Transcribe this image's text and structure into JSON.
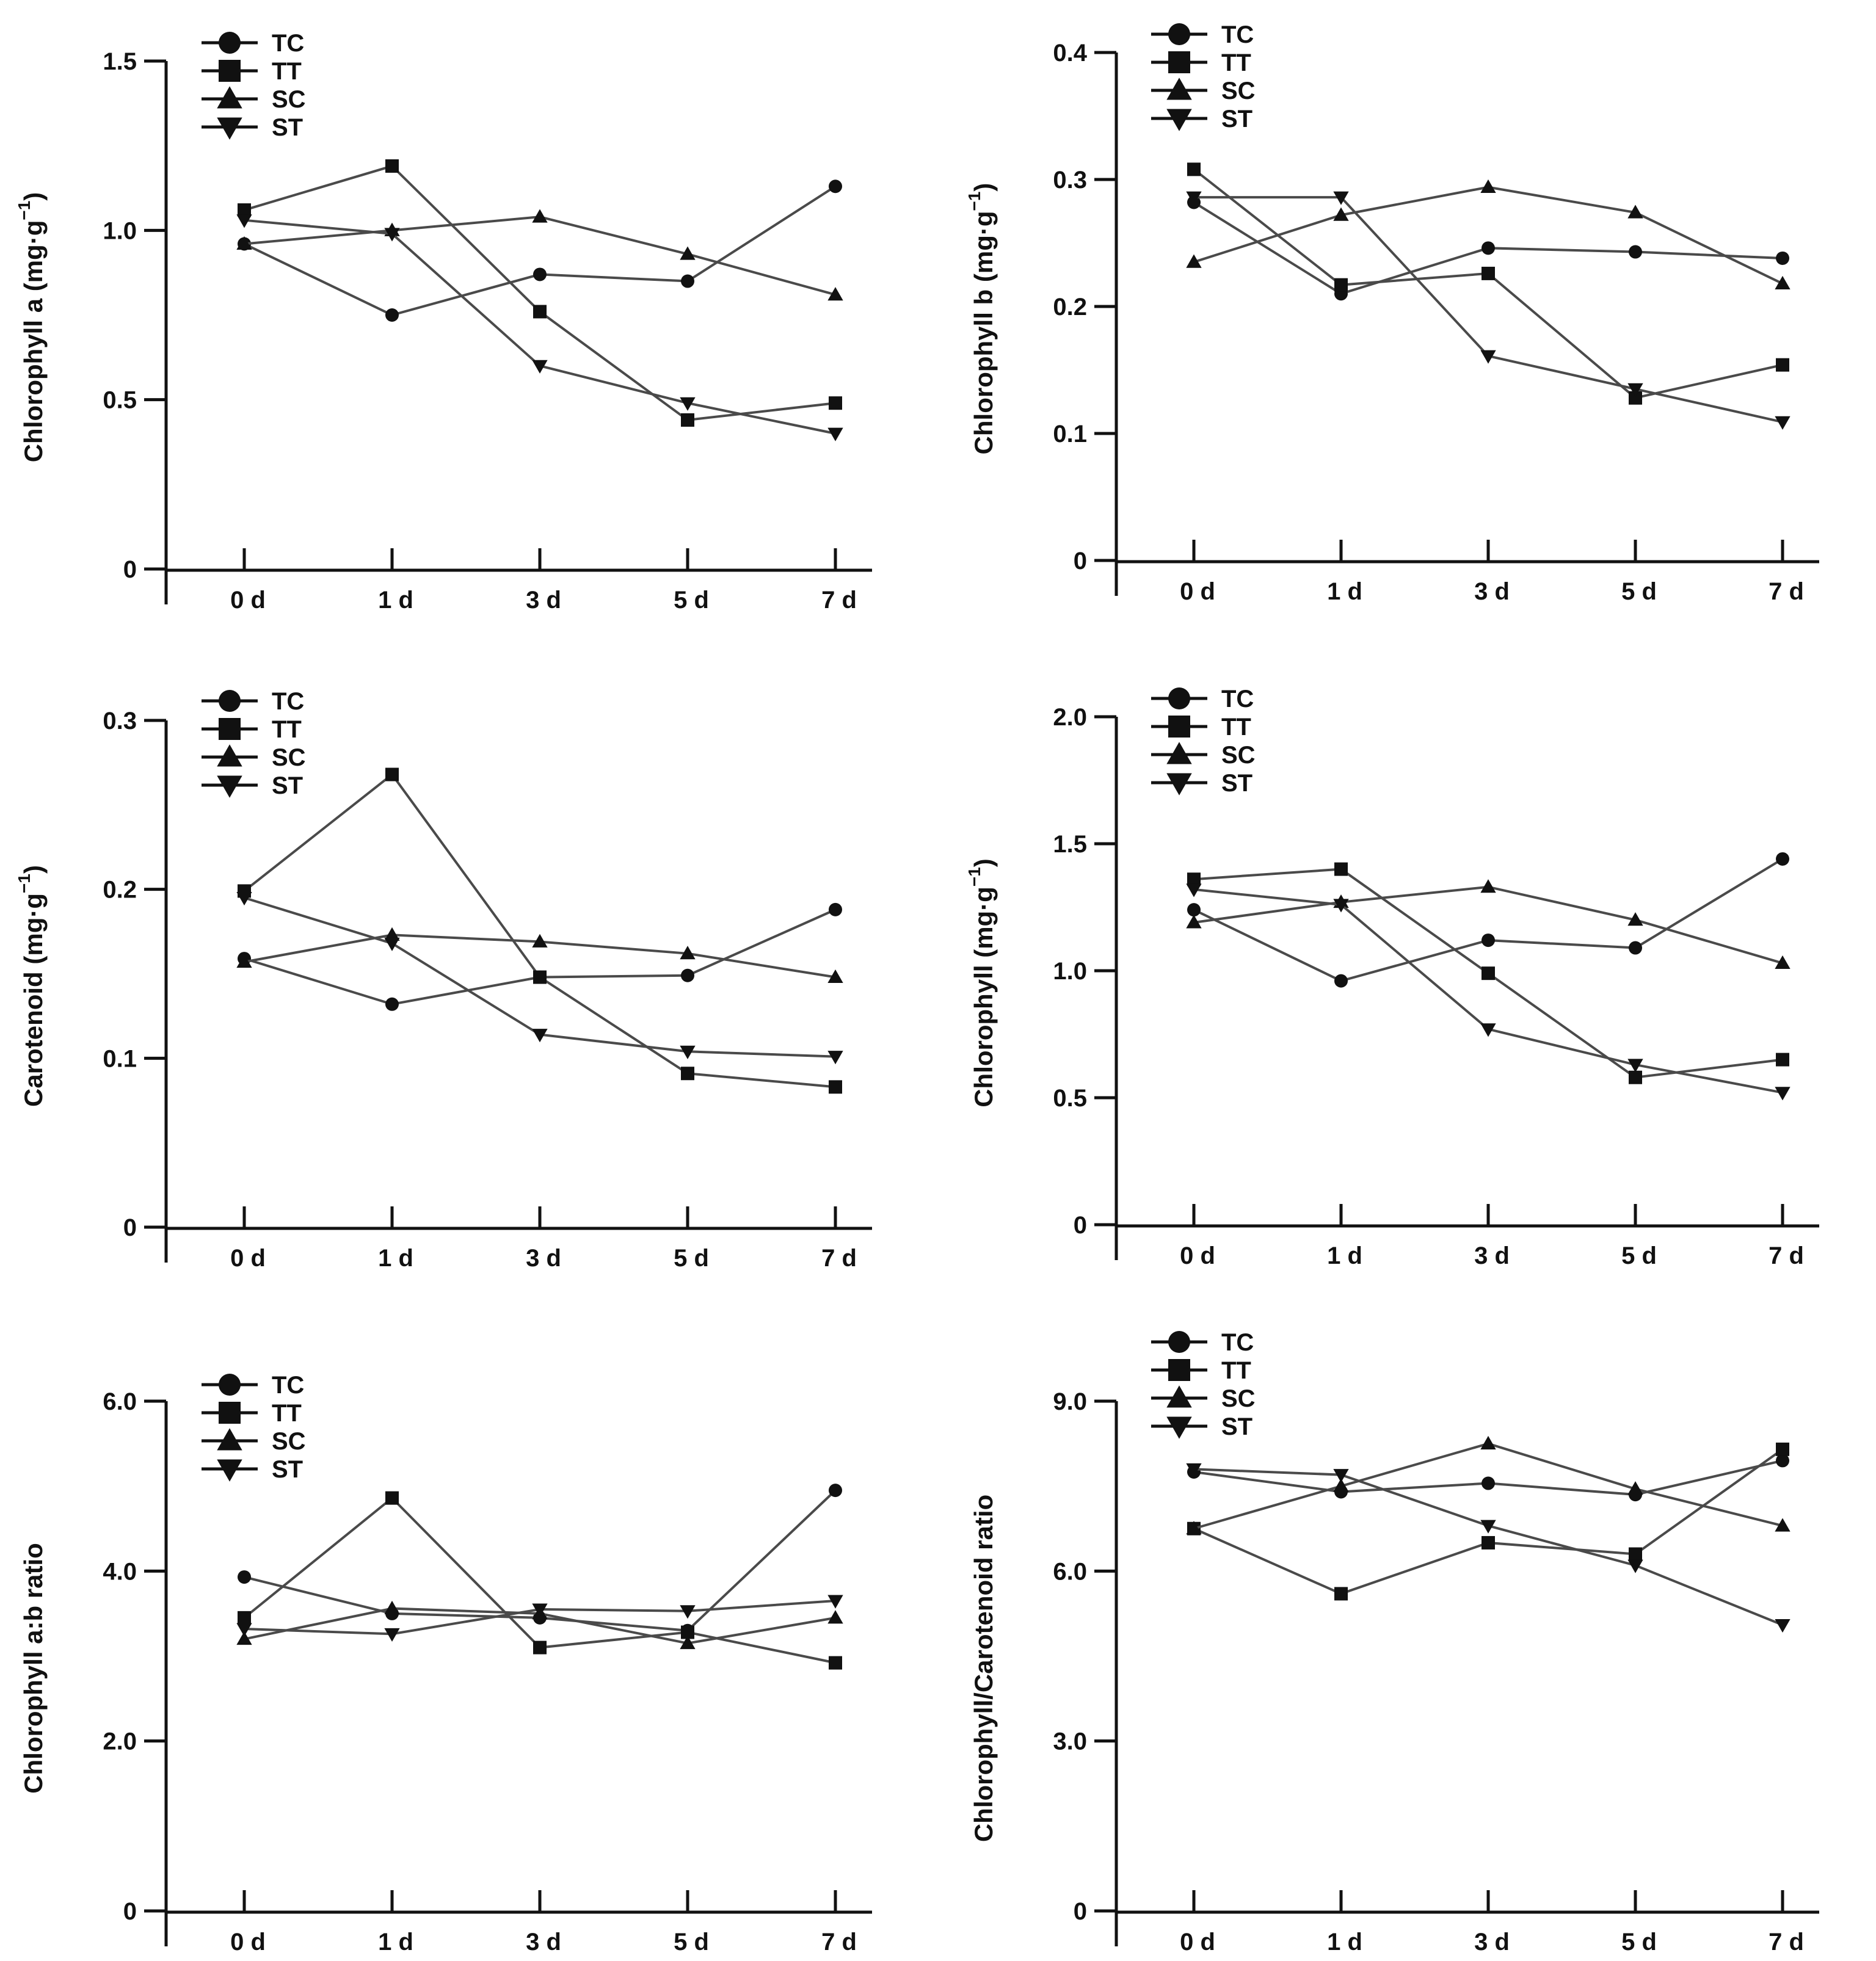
{
  "figure": {
    "series_names": [
      "TC",
      "TT",
      "SC",
      "ST"
    ],
    "series_markers": [
      "circle",
      "square",
      "triangle-up",
      "triangle-down"
    ],
    "colors": {
      "line": "#4a4a4a",
      "marker": "#111111",
      "axis": "#111111",
      "background": "#ffffff"
    }
  },
  "chart_data": [
    {
      "type": "line",
      "ylabel": "Chlorophyll a (mg·g⁻¹)",
      "ylabel_main": "Chlorophyll a (mg·g",
      "ylabel_sup": "−1",
      "ylabel_end": ")",
      "categories": [
        "0 d",
        "1 d",
        "3 d",
        "5 d",
        "7 d"
      ],
      "ylim": [
        0,
        1.5
      ],
      "yticks": [
        0,
        0.5,
        1.0,
        1.5
      ],
      "ytick_labels": [
        "0",
        "0.5",
        "1.0",
        "1.5"
      ],
      "legend_position": "top-left",
      "series": [
        {
          "name": "TC",
          "values": [
            0.96,
            0.75,
            0.87,
            0.85,
            1.13
          ]
        },
        {
          "name": "TT",
          "values": [
            1.06,
            1.19,
            0.76,
            0.44,
            0.49
          ]
        },
        {
          "name": "SC",
          "values": [
            0.96,
            1.0,
            1.04,
            0.93,
            0.81
          ]
        },
        {
          "name": "ST",
          "values": [
            1.03,
            0.99,
            0.6,
            0.49,
            0.4
          ]
        }
      ]
    },
    {
      "type": "line",
      "ylabel": "Chlorophyll b (mg·g⁻¹)",
      "ylabel_main": "Chlorophyll b (mg·g",
      "ylabel_sup": "−1",
      "ylabel_end": ")",
      "categories": [
        "0 d",
        "1 d",
        "3 d",
        "5 d",
        "7 d"
      ],
      "ylim": [
        0,
        0.4
      ],
      "yticks": [
        0,
        0.1,
        0.2,
        0.3,
        0.4
      ],
      "ytick_labels": [
        "0",
        "0.1",
        "0.2",
        "0.3",
        "0.4"
      ],
      "legend_position": "top-left",
      "series": [
        {
          "name": "TC",
          "values": [
            0.282,
            0.21,
            0.246,
            0.243,
            0.238
          ]
        },
        {
          "name": "TT",
          "values": [
            0.308,
            0.217,
            0.226,
            0.128,
            0.154
          ]
        },
        {
          "name": "SC",
          "values": [
            0.235,
            0.272,
            0.294,
            0.274,
            0.218
          ]
        },
        {
          "name": "ST",
          "values": [
            0.286,
            0.286,
            0.161,
            0.135,
            0.109
          ]
        }
      ]
    },
    {
      "type": "line",
      "ylabel": "Carotenoid (mg·g⁻¹)",
      "ylabel_main": "Carotenoid (mg·g",
      "ylabel_sup": "−1",
      "ylabel_end": ")",
      "categories": [
        "0 d",
        "1 d",
        "3 d",
        "5 d",
        "7 d"
      ],
      "ylim": [
        0,
        0.3
      ],
      "yticks": [
        0,
        0.1,
        0.2,
        0.3
      ],
      "ytick_labels": [
        "0",
        "0.1",
        "0.2",
        "0.3"
      ],
      "legend_position": "top-left",
      "series": [
        {
          "name": "TC",
          "values": [
            0.159,
            0.132,
            0.148,
            0.149,
            0.188
          ]
        },
        {
          "name": "TT",
          "values": [
            0.199,
            0.268,
            0.148,
            0.091,
            0.083
          ]
        },
        {
          "name": "SC",
          "values": [
            0.157,
            0.173,
            0.169,
            0.162,
            0.148
          ]
        },
        {
          "name": "ST",
          "values": [
            0.195,
            0.168,
            0.114,
            0.104,
            0.101
          ]
        }
      ]
    },
    {
      "type": "line",
      "ylabel": "Chlorophyll (mg·g⁻¹)",
      "ylabel_main": "Chlorophyll (mg·g",
      "ylabel_sup": "−1",
      "ylabel_end": ")",
      "categories": [
        "0 d",
        "1 d",
        "3 d",
        "5 d",
        "7 d"
      ],
      "ylim": [
        0,
        2.0
      ],
      "yticks": [
        0,
        0.5,
        1.0,
        1.5,
        2.0
      ],
      "ytick_labels": [
        "0",
        "0.5",
        "1.0",
        "1.5",
        "2.0"
      ],
      "legend_position": "top-left",
      "series": [
        {
          "name": "TC",
          "values": [
            1.24,
            0.96,
            1.12,
            1.09,
            1.44
          ]
        },
        {
          "name": "TT",
          "values": [
            1.36,
            1.4,
            0.99,
            0.58,
            0.65
          ]
        },
        {
          "name": "SC",
          "values": [
            1.19,
            1.27,
            1.33,
            1.2,
            1.03
          ]
        },
        {
          "name": "ST",
          "values": [
            1.32,
            1.26,
            0.77,
            0.63,
            0.52
          ]
        }
      ]
    },
    {
      "type": "line",
      "ylabel": "Chlorophyll a:b ratio",
      "ylabel_main": "Chlorophyll a:b ratio",
      "ylabel_sup": "",
      "ylabel_end": "",
      "categories": [
        "0 d",
        "1 d",
        "3 d",
        "5 d",
        "7 d"
      ],
      "ylim": [
        0,
        6.0
      ],
      "yticks": [
        0,
        2.0,
        4.0,
        6.0
      ],
      "ytick_labels": [
        "0",
        "2.0",
        "4.0",
        "6.0"
      ],
      "legend_position": "top-left",
      "series": [
        {
          "name": "TC",
          "values": [
            3.93,
            3.5,
            3.45,
            3.3,
            4.95
          ]
        },
        {
          "name": "TT",
          "values": [
            3.45,
            4.86,
            3.1,
            3.28,
            2.92
          ]
        },
        {
          "name": "SC",
          "values": [
            3.2,
            3.56,
            3.5,
            3.15,
            3.45
          ]
        },
        {
          "name": "ST",
          "values": [
            3.32,
            3.26,
            3.55,
            3.53,
            3.65
          ]
        }
      ]
    },
    {
      "type": "line",
      "ylabel": "Chlorophyll/Carotenoid ratio",
      "ylabel_main": "Chlorophyll/Carotenoid ratio",
      "ylabel_sup": "",
      "ylabel_end": "",
      "categories": [
        "0 d",
        "1 d",
        "3 d",
        "5 d",
        "7 d"
      ],
      "ylim": [
        0,
        9.0
      ],
      "yticks": [
        0,
        3.0,
        6.0,
        9.0
      ],
      "ytick_labels": [
        "0",
        "3.0",
        "6.0",
        "9.0"
      ],
      "legend_position": "top-left",
      "series": [
        {
          "name": "TC",
          "values": [
            7.75,
            7.4,
            7.55,
            7.35,
            7.95
          ]
        },
        {
          "name": "TT",
          "values": [
            6.75,
            5.6,
            6.5,
            6.3,
            8.15
          ]
        },
        {
          "name": "SC",
          "values": [
            6.75,
            7.5,
            8.25,
            7.45,
            6.8
          ]
        },
        {
          "name": "ST",
          "values": [
            7.8,
            7.7,
            6.8,
            6.1,
            5.05
          ]
        }
      ]
    }
  ]
}
